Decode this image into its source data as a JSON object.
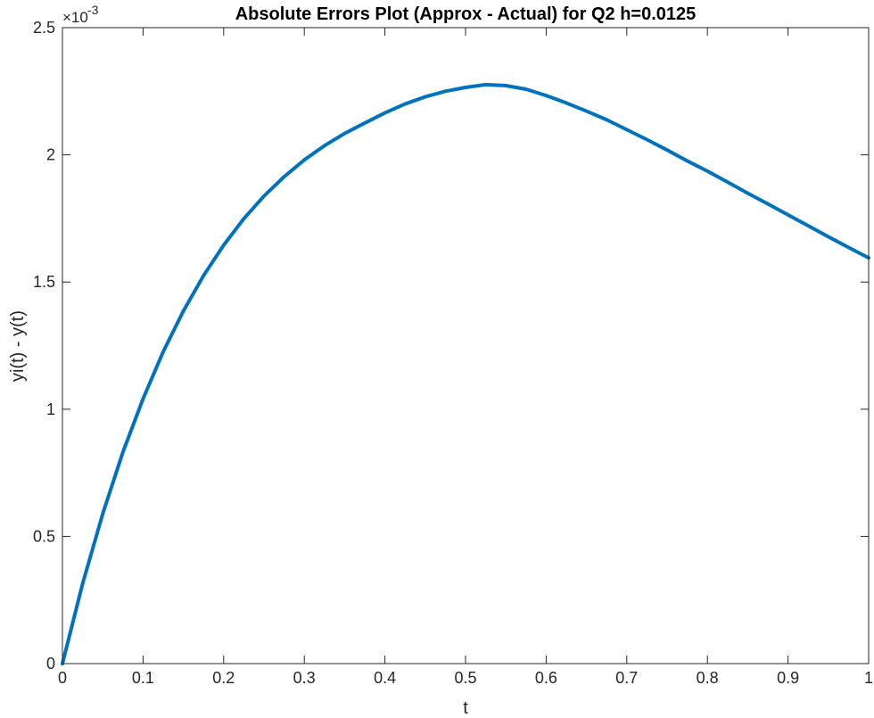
{
  "chart_data": {
    "type": "line",
    "title": "Absolute Errors Plot (Approx - Actual) for Q2 h=0.0125",
    "xlabel": "t",
    "ylabel": "yi(t) - y(t)",
    "xlim": [
      0,
      1
    ],
    "ylim": [
      0,
      0.0025
    ],
    "y_exponent_base": "×10",
    "y_exponent_power": "-3",
    "grid": false,
    "x_ticks": [
      0,
      0.1,
      0.2,
      0.3,
      0.4,
      0.5,
      0.6,
      0.7,
      0.8,
      0.9,
      1
    ],
    "x_tick_labels": [
      "0",
      "0.1",
      "0.2",
      "0.3",
      "0.4",
      "0.5",
      "0.6",
      "0.7",
      "0.8",
      "0.9",
      "1"
    ],
    "y_ticks": [
      0,
      0.0005,
      0.001,
      0.0015,
      0.002,
      0.0025
    ],
    "y_tick_labels": [
      "0",
      "0.5",
      "1",
      "1.5",
      "2",
      "2.5"
    ],
    "series": [
      {
        "color": "#0072BD",
        "x": [
          0,
          0.025,
          0.05,
          0.075,
          0.1,
          0.125,
          0.15,
          0.175,
          0.2,
          0.225,
          0.25,
          0.275,
          0.3,
          0.325,
          0.35,
          0.375,
          0.4,
          0.425,
          0.45,
          0.475,
          0.5,
          0.525,
          0.55,
          0.575,
          0.6,
          0.625,
          0.65,
          0.675,
          0.7,
          0.725,
          0.75,
          0.775,
          0.8,
          0.825,
          0.85,
          0.875,
          0.9,
          0.925,
          0.95,
          0.975,
          1
        ],
        "y": [
          0,
          0.000314,
          0.000589,
          0.000831,
          0.001041,
          0.001226,
          0.001386,
          0.001525,
          0.001645,
          0.001749,
          0.001838,
          0.001914,
          0.00198,
          0.002036,
          0.002084,
          0.002125,
          0.002165,
          0.0022,
          0.002228,
          0.00225,
          0.002265,
          0.002276,
          0.002272,
          0.002258,
          0.002233,
          0.002204,
          0.002172,
          0.002138,
          0.002099,
          0.00206,
          0.002019,
          0.001976,
          0.001936,
          0.001893,
          0.001849,
          0.001807,
          0.001764,
          0.001721,
          0.001678,
          0.001636,
          0.001595
        ]
      }
    ]
  }
}
